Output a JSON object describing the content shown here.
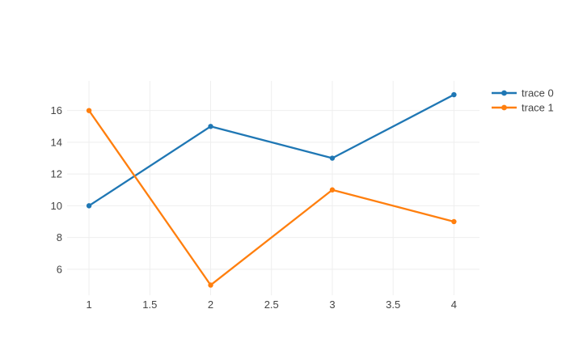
{
  "chart_data": {
    "type": "line",
    "title": "",
    "xlabel": "",
    "ylabel": "",
    "x": [
      1,
      2,
      3,
      4
    ],
    "series": [
      {
        "name": "trace 0",
        "color": "#1f77b4",
        "values": [
          10,
          15,
          13,
          17
        ]
      },
      {
        "name": "trace 1",
        "color": "#ff7f0e",
        "values": [
          16,
          5,
          11,
          9
        ]
      }
    ],
    "x_ticks": [
      1,
      1.5,
      2,
      2.5,
      3,
      3.5,
      4
    ],
    "x_tick_labels": [
      "1",
      "1.5",
      "2",
      "2.5",
      "3",
      "3.5",
      "4"
    ],
    "y_ticks": [
      6,
      8,
      10,
      12,
      14,
      16
    ],
    "y_tick_labels": [
      "6",
      "8",
      "10",
      "12",
      "14",
      "16"
    ],
    "x_range": [
      0.82,
      4.21
    ],
    "y_range": [
      4.36,
      17.87
    ],
    "grid": true,
    "legend_position": "right",
    "legend_labels": [
      "trace 0",
      "trace 1"
    ]
  },
  "style": {
    "background": "#ffffff",
    "grid_color": "#eeeeee",
    "tick_label_color": "#444444",
    "legend_text_color": "#444444"
  }
}
